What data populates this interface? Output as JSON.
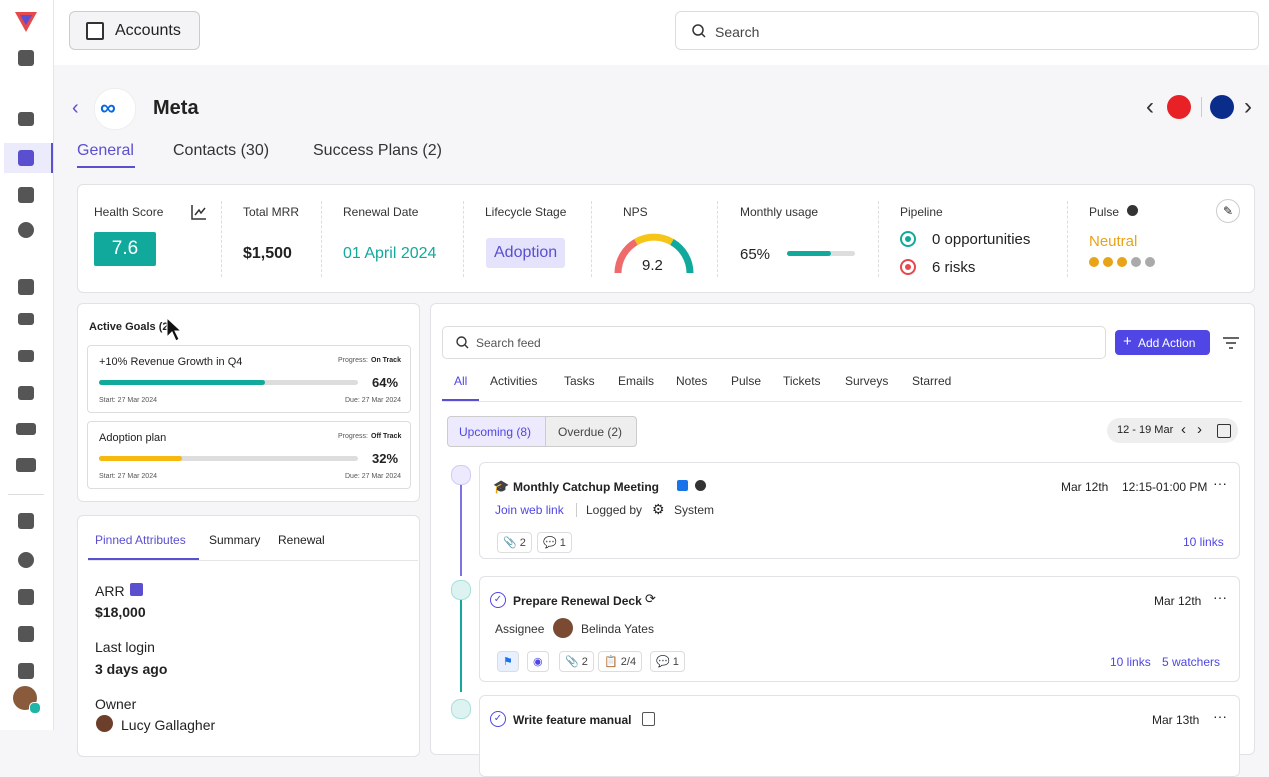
{
  "topbar": {
    "button": "Accounts",
    "search": "Search"
  },
  "account": {
    "name": "Meta",
    "tabs": [
      "General",
      "Contacts (30)",
      "Success Plans (2)"
    ]
  },
  "metrics": {
    "health_score": {
      "label": "Health Score",
      "value": "7.6"
    },
    "total_mrr": {
      "label": "Total MRR",
      "value": "$1,500"
    },
    "renewal_date": {
      "label": "Renewal Date",
      "value": "01 April 2024"
    },
    "lifecycle_stage": {
      "label": "Lifecycle Stage",
      "value": "Adoption"
    },
    "nps": {
      "label": "NPS",
      "value": 9.2
    },
    "monthly_usage": {
      "label": "Monthly usage",
      "value": {
        "value": 65,
        "label": "65%"
      }
    },
    "pipeline": {
      "label": "Pipeline",
      "items": [
        "0 opportunities",
        "6 risks"
      ]
    },
    "pulse": {
      "label": "Pulse",
      "value": "Neutral"
    }
  },
  "goals": {
    "title": "Active Goals (2)",
    "items": [
      {
        "name": "+10% Revenue Growth in Q4",
        "progress": "Progress:",
        "status": "On Track",
        "percent": {
          "value": 64,
          "label": "64%"
        },
        "start": "Start: 27 Mar 2024",
        "due": "Due: 27 Mar 2024"
      },
      {
        "name": "Adoption plan",
        "progress": "Progress:",
        "status": "Off Track",
        "percent": {
          "value": 32,
          "label": "32%"
        },
        "start": "Start: 27 Mar 2024",
        "due": "Due: 27 Mar 2024"
      }
    ]
  },
  "attributes": {
    "tabs": [
      "Pinned Attributes",
      "Summary",
      "Renewal"
    ],
    "items": [
      {
        "label": "ARR",
        "value": "$18,000"
      },
      {
        "label": "Last login",
        "value": "3 days ago"
      },
      {
        "label": "Owner",
        "value": "Lucy Gallagher"
      }
    ]
  },
  "feed": {
    "search": "Search feed",
    "add_action": "Add Action",
    "tabs": [
      "All",
      "Activities",
      "Tasks",
      "Emails",
      "Notes",
      "Pulse",
      "Tickets",
      "Surveys",
      "Starred"
    ],
    "filters": [
      "Upcoming (8)",
      "Overdue (2)"
    ],
    "date_range": "12 - 19 Mar",
    "items": [
      {
        "title": "Monthly Catchup Meeting",
        "date": "Mar 12th",
        "time": "12:15-01:00 PM",
        "link": "Join web link",
        "logged_by": "Logged by",
        "author": "System",
        "counts": [
          2,
          1
        ],
        "links": "10 links"
      },
      {
        "title": "Prepare Renewal Deck",
        "date": "Mar 12th",
        "assignee_label": "Assignee",
        "assignee": "Belinda Yates",
        "counts": [
          2,
          "2/4",
          1
        ],
        "links": "10 links",
        "watchers": "5 watchers"
      },
      {
        "title": "Write feature manual",
        "date": "Mar 13th"
      }
    ]
  }
}
